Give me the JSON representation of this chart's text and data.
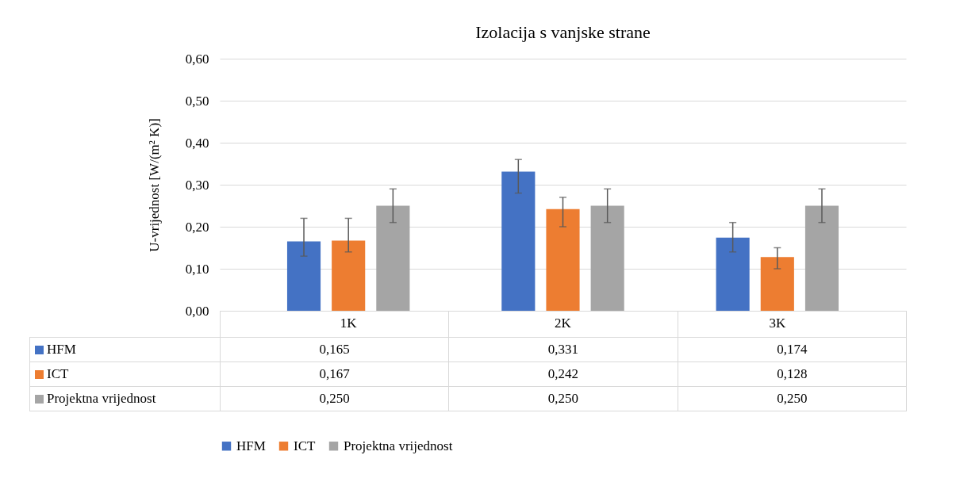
{
  "chart_data": {
    "type": "bar",
    "title": "Izolacija  s vanjske strane",
    "ylabel": "U-vrijednost [W/(m² K)]",
    "categories": [
      "1K",
      "2K",
      "3K"
    ],
    "series": [
      {
        "name": "HFM",
        "color": "#4472c4",
        "values": [
          0.165,
          0.331,
          0.174
        ],
        "value_labels": [
          "0,165",
          "0,331",
          "0,174"
        ],
        "errors": [
          [
            0.13,
            0.22
          ],
          [
            0.28,
            0.36
          ],
          [
            0.14,
            0.21
          ]
        ]
      },
      {
        "name": "ICT",
        "color": "#ed7d31",
        "values": [
          0.167,
          0.242,
          0.128
        ],
        "value_labels": [
          "0,167",
          "0,242",
          "0,128"
        ],
        "errors": [
          [
            0.14,
            0.22
          ],
          [
            0.2,
            0.27
          ],
          [
            0.1,
            0.15
          ]
        ]
      },
      {
        "name": "Projektna vrijednost",
        "color": "#a5a5a5",
        "values": [
          0.25,
          0.25,
          0.25
        ],
        "value_labels": [
          "0,250",
          "0,250",
          "0,250"
        ],
        "errors": [
          [
            0.21,
            0.29
          ],
          [
            0.21,
            0.29
          ],
          [
            0.21,
            0.29
          ]
        ]
      }
    ],
    "ylim": [
      0,
      0.6
    ],
    "yticks": [
      {
        "value": 0,
        "label": "0,00"
      },
      {
        "value": 0.1,
        "label": "0,10"
      },
      {
        "value": 0.2,
        "label": "0,20"
      },
      {
        "value": 0.3,
        "label": "0,30"
      },
      {
        "value": 0.4,
        "label": "0,40"
      },
      {
        "value": 0.5,
        "label": "0,50"
      },
      {
        "value": 0.6,
        "label": "0,60"
      }
    ],
    "grid": "y",
    "legend": "bottom"
  }
}
